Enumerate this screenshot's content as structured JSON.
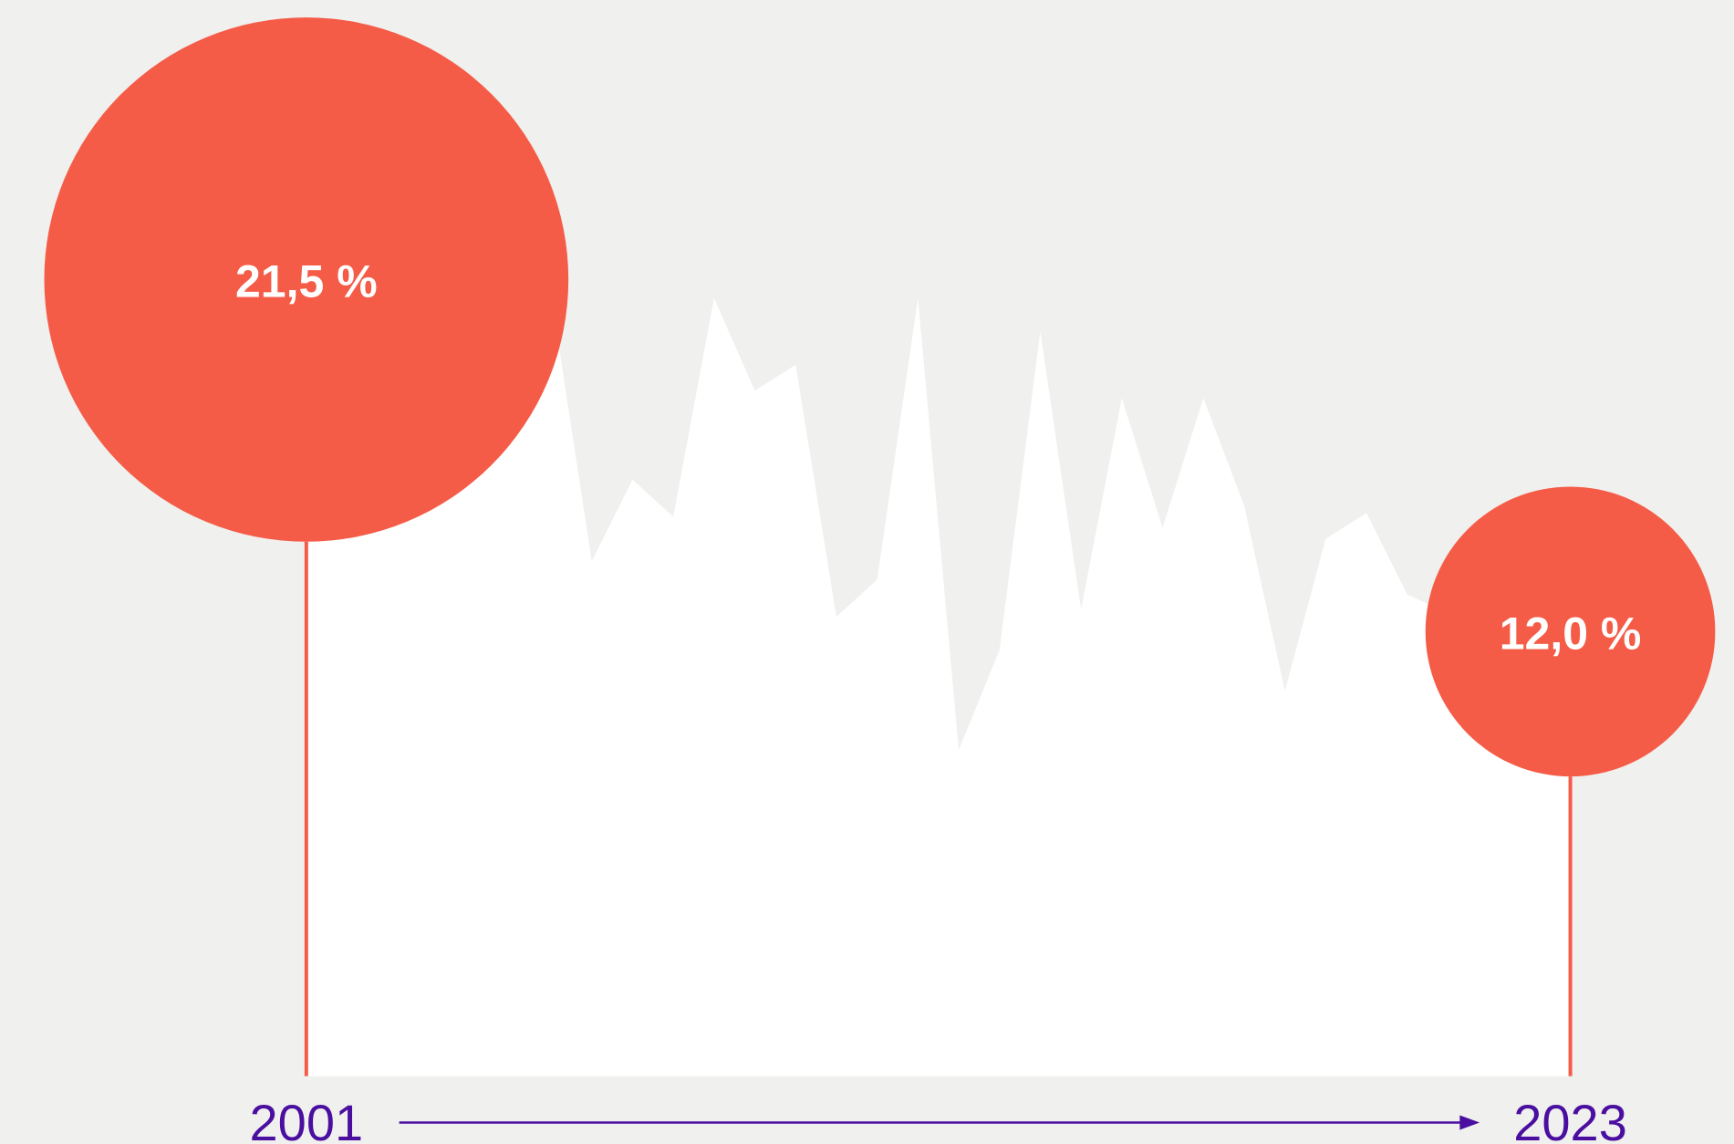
{
  "chart_data": {
    "type": "area",
    "categories": [
      "2001",
      null,
      null,
      null,
      null,
      null,
      null,
      null,
      null,
      null,
      null,
      null,
      null,
      null,
      null,
      null,
      null,
      null,
      null,
      null,
      null,
      null,
      null,
      null,
      null,
      null,
      null,
      null,
      null,
      null,
      null,
      "2023"
    ],
    "values": [
      21.5,
      21.5,
      21.3,
      21.0,
      21.2,
      21.4,
      21.1,
      13.9,
      16.1,
      15.1,
      21.0,
      18.5,
      19.2,
      12.4,
      13.4,
      21.0,
      8.8,
      11.5,
      20.1,
      12.6,
      18.3,
      14.8,
      18.3,
      15.4,
      10.4,
      14.5,
      15.2,
      13.0,
      12.5,
      12.2,
      12.0,
      12.0
    ],
    "value_labels": [
      "21,5 %",
      null,
      null,
      null,
      null,
      null,
      null,
      null,
      null,
      null,
      null,
      null,
      null,
      null,
      null,
      null,
      null,
      null,
      null,
      null,
      null,
      null,
      null,
      null,
      null,
      null,
      null,
      null,
      null,
      null,
      null,
      "12,0 %"
    ],
    "color": "#ffffff",
    "highlight_color": "#f55c47",
    "axis_color": "#4b0fa0",
    "ylim": [
      0,
      29
    ]
  }
}
